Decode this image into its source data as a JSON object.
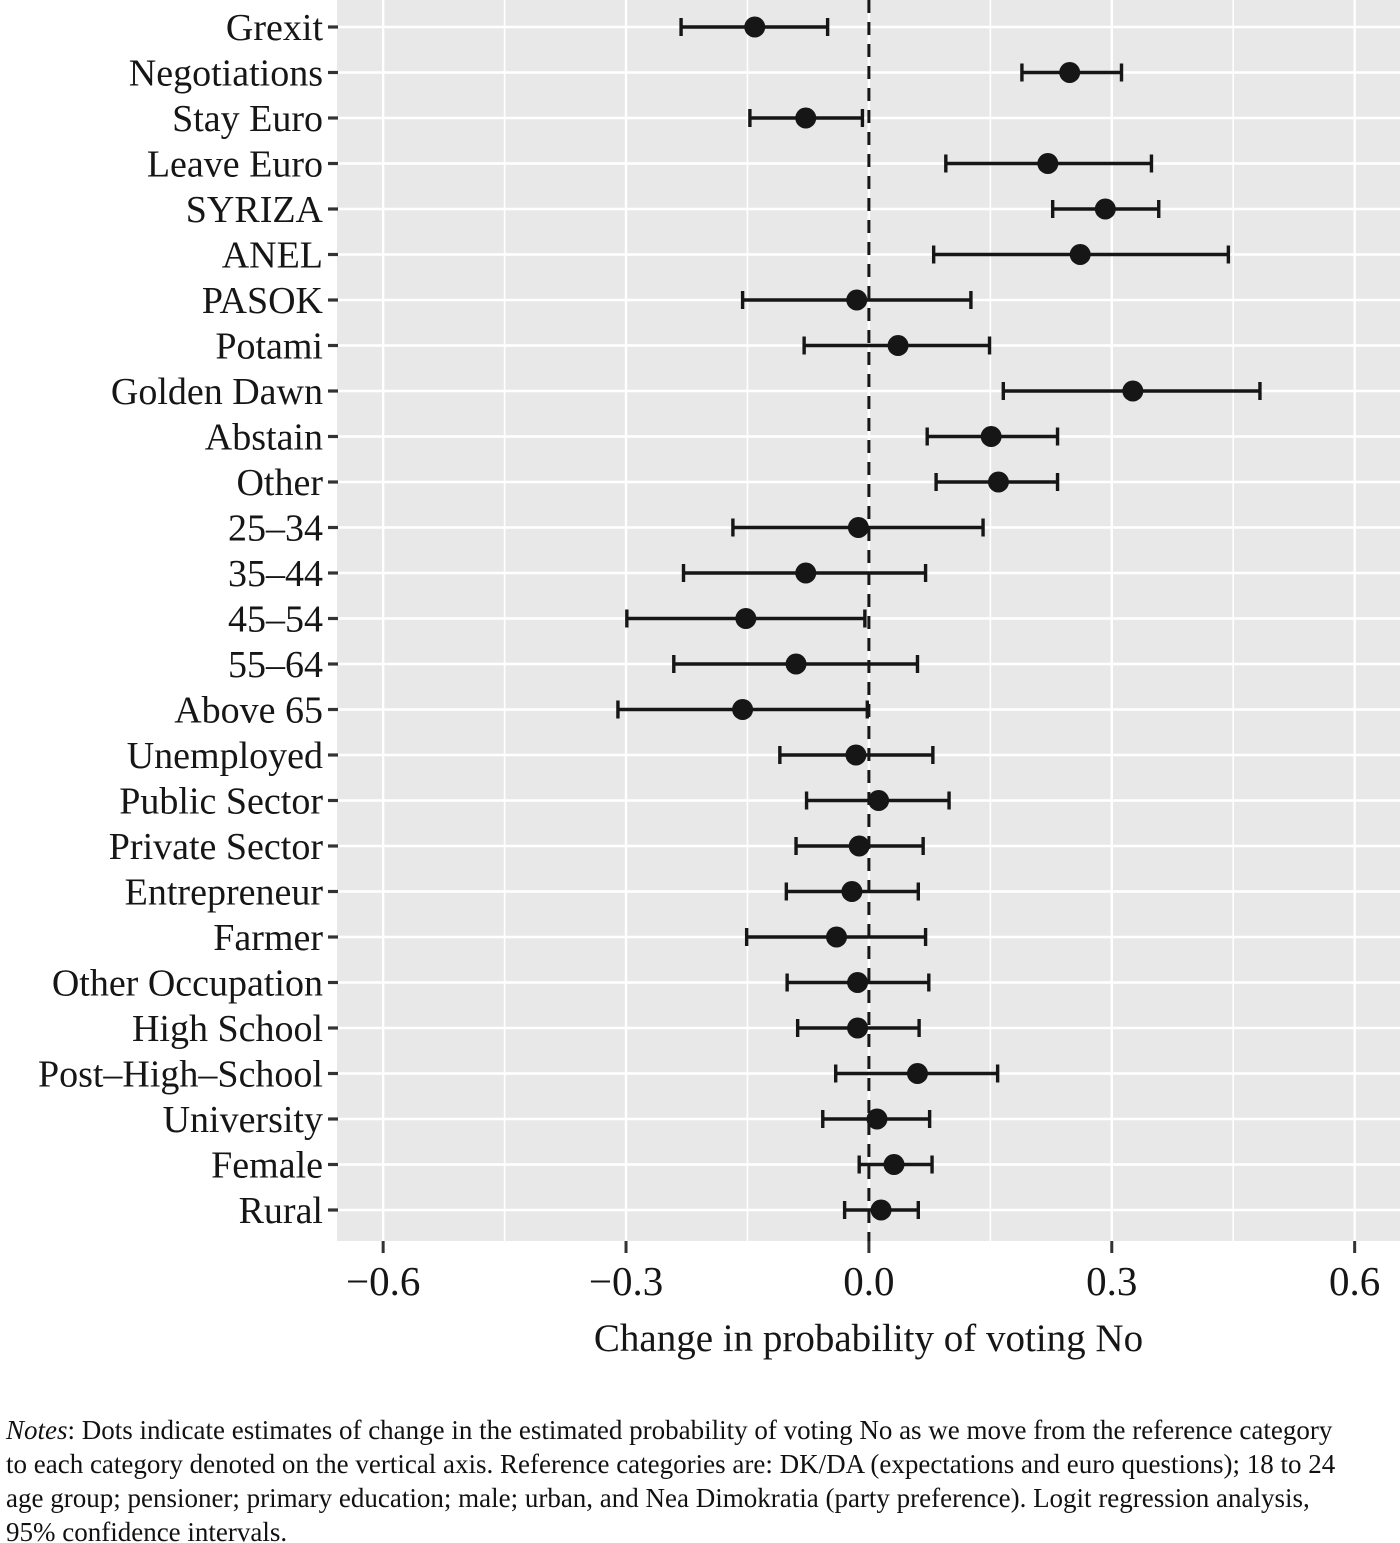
{
  "chart_data": {
    "type": "scatter",
    "subtype": "horizontal-dot-and-whisker-coefficient-plot",
    "title": "",
    "xlabel": "Change in probability of voting No",
    "ylabel": "",
    "xlim": [
      -0.657,
      0.656
    ],
    "grid": "on",
    "legend": "none",
    "ci_level": "95%",
    "zero_reference_line": 0,
    "x_major_ticks": [
      -0.6,
      -0.3,
      0.0,
      0.3,
      0.6
    ],
    "x_major_tick_labels": [
      "−0.6",
      "−0.3",
      "0.0",
      "0.3",
      "0.6"
    ],
    "x_minor_gridlines": [
      -0.45,
      -0.15,
      0.15,
      0.45
    ],
    "categories": [
      "Grexit",
      "Negotiations",
      "Stay Euro",
      "Leave Euro",
      "SYRIZA",
      "ANEL",
      "PASOK",
      "Potami",
      "Golden Dawn",
      "Abstain",
      "Other",
      "25–34",
      "35–44",
      "45–54",
      "55–64",
      "Above 65",
      "Unemployed",
      "Public Sector",
      "Private Sector",
      "Entrepreneur",
      "Farmer",
      "Other Occupation",
      "High School",
      "Post–High–School",
      "University",
      "Female",
      "Rural"
    ],
    "series": [
      {
        "name": "Estimated change in probability (dot) with 95% confidence interval (whiskers)",
        "estimates": [
          -0.141,
          0.248,
          -0.078,
          0.221,
          0.292,
          0.261,
          -0.015,
          0.036,
          0.326,
          0.151,
          0.16,
          -0.013,
          -0.078,
          -0.152,
          -0.09,
          -0.156,
          -0.016,
          0.012,
          -0.012,
          -0.021,
          -0.04,
          -0.014,
          -0.014,
          0.06,
          0.01,
          0.031,
          0.015
        ],
        "ci_low": [
          -0.232,
          0.189,
          -0.147,
          0.095,
          0.227,
          0.08,
          -0.156,
          -0.08,
          0.166,
          0.072,
          0.083,
          -0.168,
          -0.229,
          -0.299,
          -0.241,
          -0.31,
          -0.11,
          -0.077,
          -0.09,
          -0.102,
          -0.151,
          -0.101,
          -0.088,
          -0.041,
          -0.057,
          -0.012,
          -0.03
        ],
        "ci_high": [
          -0.051,
          0.312,
          -0.008,
          0.349,
          0.358,
          0.444,
          0.126,
          0.149,
          0.483,
          0.233,
          0.233,
          0.141,
          0.07,
          -0.005,
          0.06,
          -0.002,
          0.079,
          0.099,
          0.067,
          0.061,
          0.07,
          0.074,
          0.062,
          0.159,
          0.075,
          0.078,
          0.061
        ]
      }
    ],
    "style": {
      "panel_bg": "#e8e8e8",
      "grid_color": "#ffffff",
      "ink": "#161616",
      "tick_color": "#333333"
    }
  },
  "notes": {
    "label": "Notes",
    "text": ": Dots indicate estimates of change in the estimated probability of voting No as we move from the reference category to each category denoted on the vertical axis. Reference categories are: DK/DA (expectations and euro questions); 18 to 24 age group; pensioner; primary education; male; urban, and Nea Dimokratia (party preference). Logit regression analysis, 95% confidence intervals."
  }
}
